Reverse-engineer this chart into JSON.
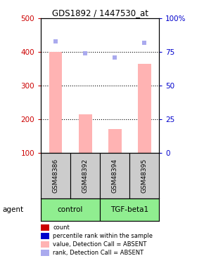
{
  "title": "GDS1892 / 1447530_at",
  "samples": [
    "GSM48386",
    "GSM48392",
    "GSM48394",
    "GSM48395"
  ],
  "bar_values": [
    400,
    215,
    170,
    365
  ],
  "bar_color": "#ffb3b3",
  "rank_dots_pct": [
    83,
    74,
    71,
    82
  ],
  "rank_color": "#aaaaee",
  "ylim_left": [
    100,
    500
  ],
  "ylim_right": [
    0,
    100
  ],
  "yticks_left": [
    100,
    200,
    300,
    400,
    500
  ],
  "yticks_right": [
    0,
    25,
    50,
    75,
    100
  ],
  "ytick_labels_right": [
    "0",
    "25",
    "50",
    "75",
    "100%"
  ],
  "grid_values": [
    200,
    300,
    400
  ],
  "group_labels": [
    "control",
    "TGF-beta1"
  ],
  "group_color": "#90ee90",
  "agent_label": "agent",
  "legend_labels": [
    "count",
    "percentile rank within the sample",
    "value, Detection Call = ABSENT",
    "rank, Detection Call = ABSENT"
  ],
  "legend_colors": [
    "#cc0000",
    "#0000cc",
    "#ffb3b3",
    "#aaaaee"
  ],
  "left_color": "#cc0000",
  "right_color": "#0000cc",
  "sample_area_color": "#cccccc",
  "bar_width": 0.45
}
